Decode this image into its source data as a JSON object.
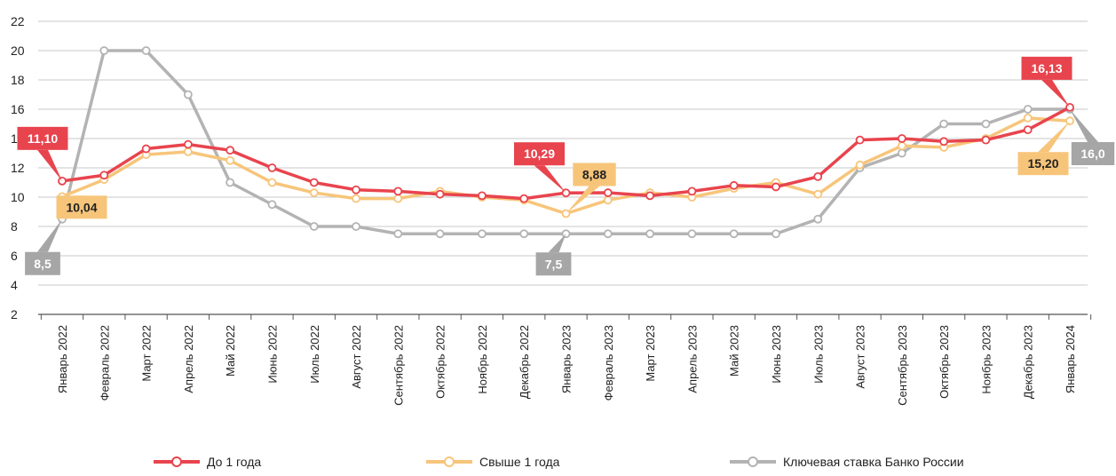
{
  "chart_data": {
    "type": "line",
    "categories": [
      "Январь 2022",
      "Февраль 2022",
      "Март 2022",
      "Апрель 2022",
      "Май 2022",
      "Июнь 2022",
      "Июль 2022",
      "Август 2022",
      "Сентябрь 2022",
      "Октябрь 2022",
      "Ноябрь 2022",
      "Декабрь 2022",
      "Январь 2023",
      "Февраль 2023",
      "Март 2023",
      "Апрель 2023",
      "Май 2023",
      "Июнь 2023",
      "Июль 2023",
      "Август 2023",
      "Сентябрь 2023",
      "Октябрь 2023",
      "Ноябрь 2023",
      "Декабрь 2023",
      "Январь 2024"
    ],
    "ylim": [
      2,
      22
    ],
    "yticks": [
      2,
      4,
      6,
      8,
      10,
      12,
      14,
      16,
      18,
      20,
      22
    ],
    "grid": true,
    "legend_position": "bottom",
    "series": [
      {
        "name": "До 1 года",
        "color": "#e8444e",
        "values": [
          11.1,
          11.5,
          13.3,
          13.6,
          13.2,
          12.0,
          11.0,
          10.5,
          10.4,
          10.2,
          10.1,
          9.9,
          10.29,
          10.3,
          10.1,
          10.4,
          10.8,
          10.7,
          11.4,
          13.9,
          14.0,
          13.8,
          13.9,
          14.6,
          16.13
        ]
      },
      {
        "name": "Свыше 1 года",
        "color": "#f7c57a",
        "values": [
          10.04,
          11.2,
          12.9,
          13.1,
          12.5,
          11.0,
          10.3,
          9.9,
          9.9,
          10.4,
          10.0,
          9.8,
          8.88,
          9.8,
          10.3,
          10.0,
          10.6,
          11.0,
          10.2,
          12.2,
          13.5,
          13.4,
          14.0,
          15.4,
          15.2
        ]
      },
      {
        "name": "Ключевая ставка Банко России",
        "color": "#b3b3b3",
        "values": [
          8.5,
          20,
          20,
          17,
          11,
          9.5,
          8,
          8,
          7.5,
          7.5,
          7.5,
          7.5,
          7.5,
          7.5,
          7.5,
          7.5,
          7.5,
          7.5,
          8.5,
          12,
          13,
          15,
          15,
          16,
          16
        ]
      }
    ],
    "annotations": [
      {
        "series": 0,
        "index": 0,
        "text": "11,10",
        "color": "#e8444e"
      },
      {
        "series": 1,
        "index": 0,
        "text": "10,04",
        "color": "#f7c57a"
      },
      {
        "series": 2,
        "index": 0,
        "text": "8,5",
        "color": "#a6a6a6"
      },
      {
        "series": 0,
        "index": 12,
        "text": "10,29",
        "color": "#e8444e"
      },
      {
        "series": 1,
        "index": 12,
        "text": "8,88",
        "color": "#f7c57a"
      },
      {
        "series": 2,
        "index": 12,
        "text": "7,5",
        "color": "#a6a6a6"
      },
      {
        "series": 0,
        "index": 24,
        "text": "16,13",
        "color": "#e8444e"
      },
      {
        "series": 1,
        "index": 24,
        "text": "15,20",
        "color": "#f7c57a"
      },
      {
        "series": 2,
        "index": 24,
        "text": "16,0",
        "color": "#a6a6a6"
      }
    ]
  }
}
